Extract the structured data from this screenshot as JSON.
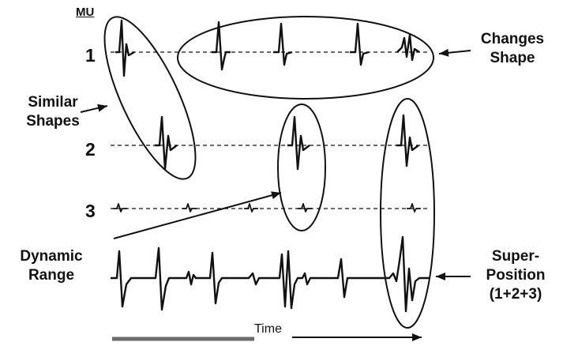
{
  "labels": {
    "mu_header": "MU",
    "row_1": "1",
    "row_2": "2",
    "row_3": "3",
    "similar_shapes": [
      "Similar",
      "Shapes"
    ],
    "changes_shape": [
      "Changes",
      "Shape"
    ],
    "dynamic_range": [
      "Dynamic",
      "Range"
    ],
    "super_position": [
      "Super-",
      "Position",
      "(1+2+3)"
    ],
    "time": "Time"
  },
  "colors": {
    "ink": "#111111"
  }
}
